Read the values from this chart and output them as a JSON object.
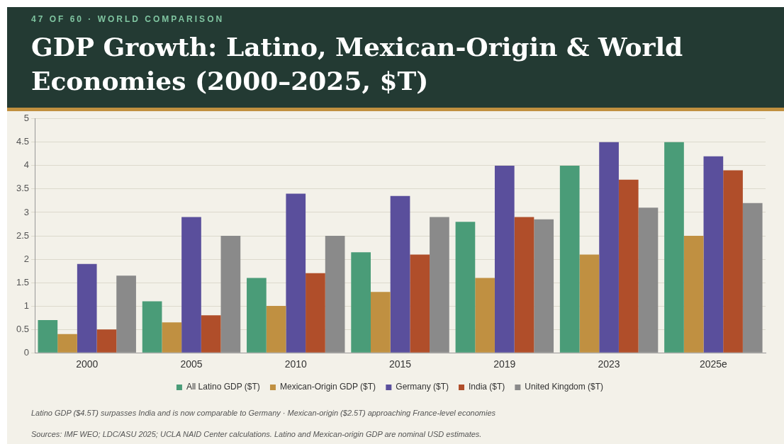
{
  "chart_data": {
    "type": "bar",
    "subtitle": "47 OF 60 · WORLD COMPARISON",
    "title": "GDP Growth: Latino, Mexican-Origin & World Economies (2000–2025, $T)",
    "categories": [
      "2000",
      "2005",
      "2010",
      "2015",
      "2019",
      "2023",
      "2025e"
    ],
    "series": [
      {
        "name": "All Latino GDP ($T)",
        "color": "#4a9c78",
        "values": [
          0.7,
          1.1,
          1.6,
          2.15,
          2.8,
          4.0,
          4.5
        ]
      },
      {
        "name": "Mexican-Origin GDP ($T)",
        "color": "#c09041",
        "values": [
          0.4,
          0.65,
          1.0,
          1.3,
          1.6,
          2.1,
          2.5
        ]
      },
      {
        "name": "Germany ($T)",
        "color": "#5a4f9c",
        "values": [
          1.9,
          2.9,
          3.4,
          3.35,
          4.0,
          4.5,
          4.2
        ]
      },
      {
        "name": "India ($T)",
        "color": "#b04e2a",
        "values": [
          0.5,
          0.8,
          1.7,
          2.1,
          2.9,
          3.7,
          3.9
        ]
      },
      {
        "name": "United Kingdom ($T)",
        "color": "#8a8a8a",
        "values": [
          1.65,
          2.5,
          2.5,
          2.9,
          2.85,
          3.1,
          3.2
        ]
      }
    ],
    "ylim": [
      0,
      5
    ],
    "yticks": [
      0,
      0.5,
      1,
      1.5,
      2,
      2.5,
      3,
      3.5,
      4,
      4.5,
      5
    ],
    "grid": "y",
    "legend": "bottom",
    "annotations": [
      "Latino GDP ($4.5T) surpasses India and is now comparable to Germany · Mexican-origin ($2.5T) approaching France-level economies",
      "Sources: IMF WEO; LDC/ASU 2025; UCLA NAID Center calculations. Latino and Mexican-origin GDP are nominal USD estimates."
    ]
  }
}
